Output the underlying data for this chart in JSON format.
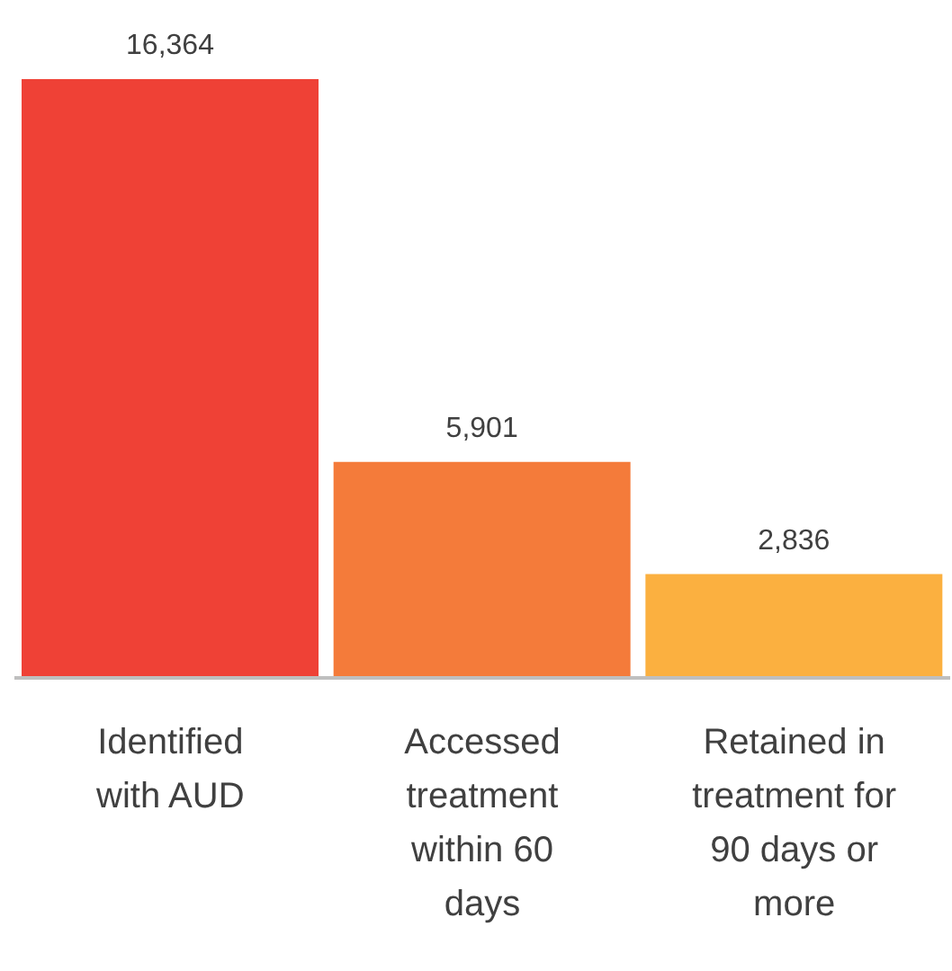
{
  "chart_data": {
    "type": "bar",
    "categories": [
      "Identified with AUD",
      "Accessed treatment within 60 days",
      "Retained in treatment for 90 days or more"
    ],
    "values": [
      16364,
      5901,
      2836
    ],
    "colors": [
      "#ef4136",
      "#f47b3a",
      "#fbb040"
    ],
    "value_labels": [
      "16,364",
      "5,901",
      "2,836"
    ]
  }
}
